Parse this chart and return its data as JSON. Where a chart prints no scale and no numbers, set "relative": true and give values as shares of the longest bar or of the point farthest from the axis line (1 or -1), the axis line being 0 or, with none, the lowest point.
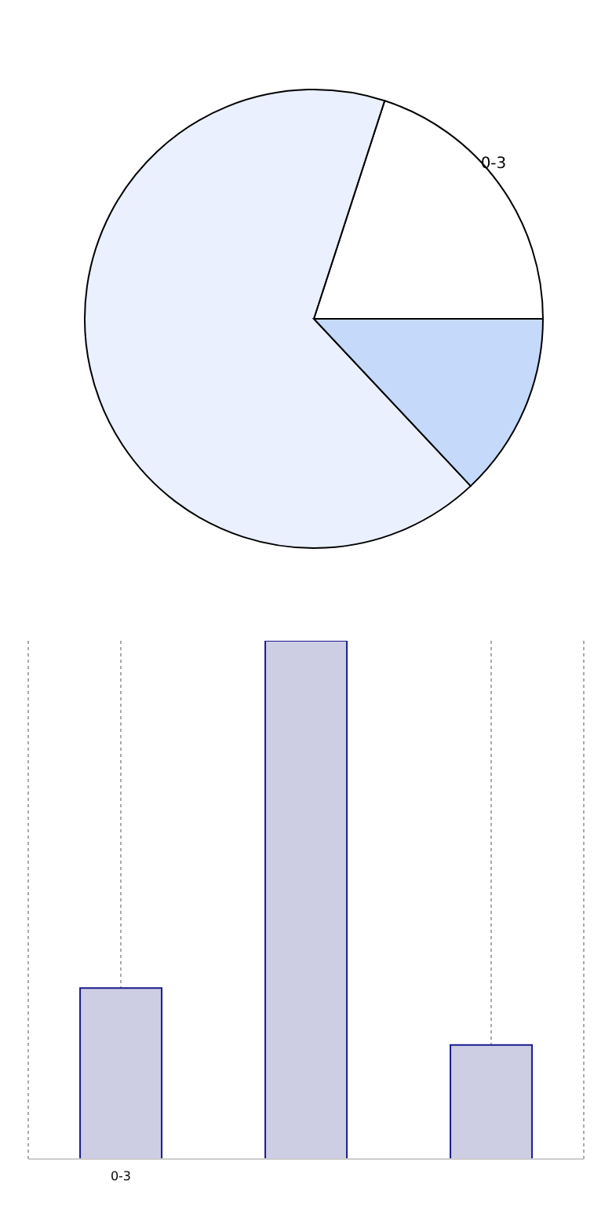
{
  "chart_data": [
    {
      "type": "pie",
      "categories": [
        "0-3",
        null,
        null
      ],
      "values": [
        20,
        67,
        13
      ],
      "colors": [
        "#ffffff",
        "#eaf0fd",
        "#c5d9fb"
      ]
    },
    {
      "type": "bar",
      "categories": [
        "0-3",
        null,
        null
      ],
      "values": [
        0.33,
        1,
        0.22
      ],
      "color": "#cdcde4",
      "relative": true,
      "grid": "x"
    }
  ]
}
